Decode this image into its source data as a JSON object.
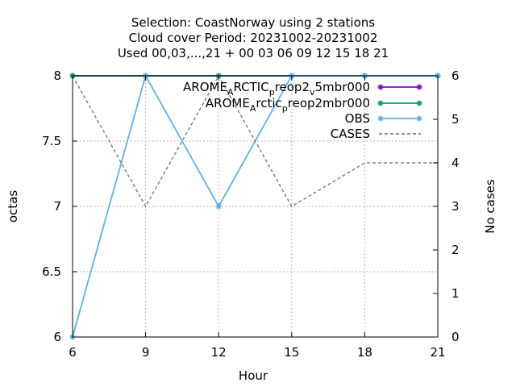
{
  "chart_data": {
    "type": "line",
    "title": [
      "Selection: CoastNorway using     2 stations",
      "Cloud cover   Period: 20231002-20231002",
      "Used  00,03,...,21  + 00 03 06 09 12 15 18 21"
    ],
    "xlabel": "Hour",
    "ylabel": "octas",
    "y2label": "No cases",
    "xlim": [
      6,
      21
    ],
    "ylim": [
      6,
      8
    ],
    "y2lim": [
      0,
      6
    ],
    "xticks": [
      6,
      9,
      12,
      15,
      18,
      21
    ],
    "yticks": [
      6,
      6.5,
      7,
      7.5,
      8
    ],
    "ytick_labels": [
      "6",
      "6.5",
      "7",
      "7.5",
      "8"
    ],
    "y2ticks": [
      0,
      1,
      2,
      3,
      4,
      5,
      6
    ],
    "grid": true,
    "legend_position": "top-right",
    "series": [
      {
        "name": "AROME_ARCTIC_preop2_v5mbr000",
        "legend_parts": [
          {
            "t": "AROME",
            "s": "normal"
          },
          {
            "t": "A",
            "s": "sub"
          },
          {
            "t": "RCTIC",
            "s": "normal"
          },
          {
            "t": "p",
            "s": "sub"
          },
          {
            "t": "reop2",
            "s": "normal"
          },
          {
            "t": "v",
            "s": "sub"
          },
          {
            "t": "5mbr000",
            "s": "normal"
          }
        ],
        "color": "#9400d3",
        "axis": "y",
        "x": [
          6,
          9,
          12,
          15,
          18,
          21
        ],
        "y": [
          8,
          8,
          8,
          8,
          8,
          8
        ]
      },
      {
        "name": "AROME_Arctic_preop2mbr000",
        "legend_parts": [
          {
            "t": "AROME",
            "s": "normal"
          },
          {
            "t": "A",
            "s": "sub"
          },
          {
            "t": "rctic",
            "s": "normal"
          },
          {
            "t": "p",
            "s": "sub"
          },
          {
            "t": "reop2mbr000",
            "s": "normal"
          }
        ],
        "color": "#009e73",
        "axis": "y",
        "x": [
          6,
          9,
          12,
          15,
          18,
          21
        ],
        "y": [
          8,
          8,
          8,
          8,
          8,
          8
        ]
      },
      {
        "name": "OBS",
        "legend_parts": [
          {
            "t": "OBS",
            "s": "normal"
          }
        ],
        "color": "#56b4e9",
        "axis": "y",
        "x": [
          6,
          9,
          12,
          15,
          18,
          21
        ],
        "y": [
          6,
          8,
          7,
          8,
          8,
          8
        ]
      },
      {
        "name": "CASES",
        "legend_parts": [
          {
            "t": "CASES",
            "s": "normal"
          }
        ],
        "color": "#808080",
        "axis": "y2",
        "dashed": true,
        "x": [
          6,
          9,
          12,
          15,
          18,
          21
        ],
        "y": [
          6,
          3,
          6,
          3,
          4,
          4
        ]
      }
    ]
  }
}
